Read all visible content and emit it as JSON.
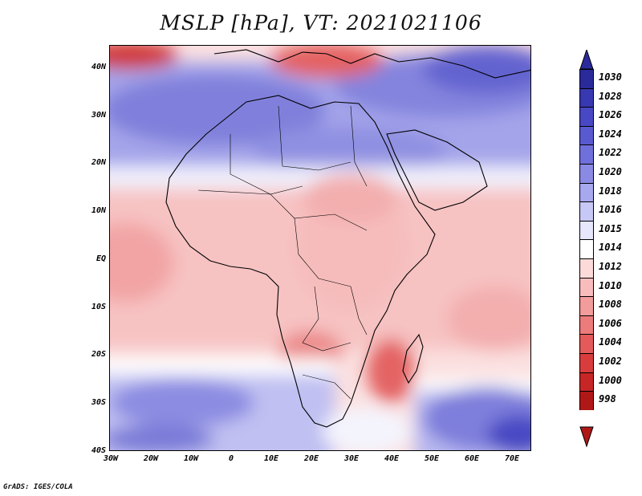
{
  "title": "MSLP [hPa], VT: 2021021106",
  "credit": "GrADS: IGES/COLA",
  "map": {
    "lat_labels": [
      "40N",
      "30N",
      "20N",
      "10N",
      "EQ",
      "10S",
      "20S",
      "30S",
      "40S"
    ],
    "lon_labels": [
      "30W",
      "20W",
      "10W",
      "0",
      "10E",
      "20E",
      "30E",
      "40E",
      "50E",
      "60E",
      "70E"
    ],
    "lon_range": [
      -30,
      75
    ],
    "lat_range": [
      -40,
      45
    ]
  },
  "colorbar": {
    "levels": [
      "1030",
      "1028",
      "1026",
      "1024",
      "1022",
      "1020",
      "1018",
      "1016",
      "1015",
      "1014",
      "1012",
      "1010",
      "1008",
      "1006",
      "1004",
      "1002",
      "1000",
      "998"
    ],
    "colors": [
      "#2a2a9a",
      "#3838b0",
      "#4848c4",
      "#5a5ad0",
      "#7070dc",
      "#8a8ae4",
      "#a8a8ee",
      "#c8c8f6",
      "#e6e6fc",
      "#ffffff",
      "#fcdada",
      "#f8bcbc",
      "#f29c9c",
      "#ec7c7c",
      "#e45a5a",
      "#d83c3c",
      "#c62626",
      "#b01818"
    ]
  }
}
